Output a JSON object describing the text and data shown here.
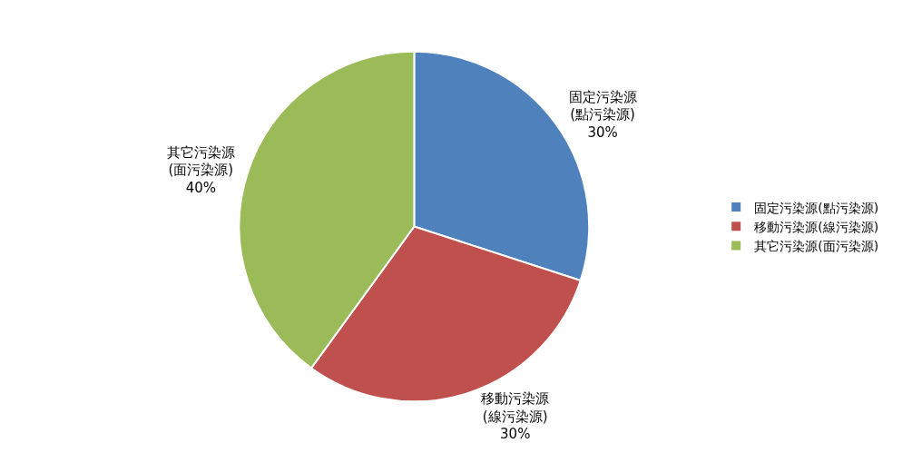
{
  "chart_data": {
    "type": "pie",
    "categories": [
      "固定污染源(點污染源)",
      "移動污染源(線污染源)",
      "其它污染源(面污染源)"
    ],
    "values": [
      30,
      30,
      40
    ],
    "colors": [
      "#4f81bd",
      "#c0504d",
      "#9bbb59"
    ],
    "value_labels": [
      "固定污染源\n(點污染源)\n30%",
      "移動污染源\n(線污染源)\n30%",
      "其它污染源\n(面污染源)\n40%"
    ],
    "legend": "right"
  }
}
